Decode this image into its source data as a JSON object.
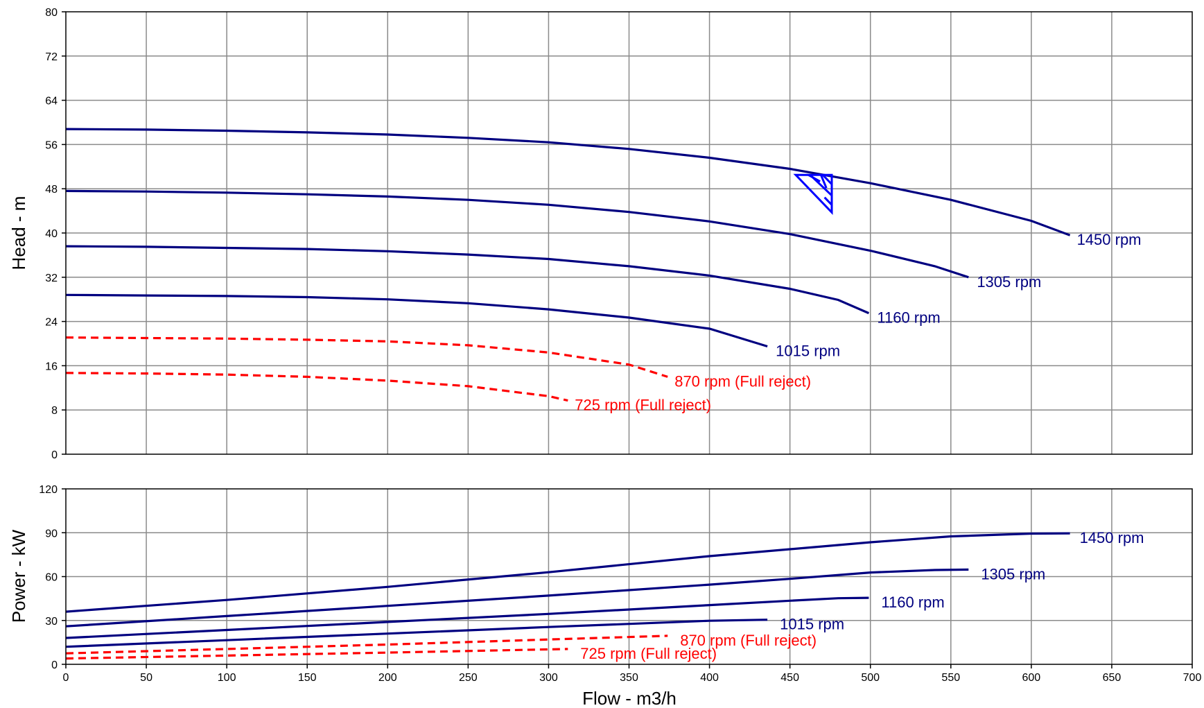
{
  "chart_data": [
    {
      "type": "line",
      "panel": "head",
      "xlabel": "",
      "ylabel": "Head - m",
      "xlim": [
        0,
        700
      ],
      "ylim": [
        0,
        80
      ],
      "x_ticks": [
        "0",
        "50",
        "100",
        "150",
        "200",
        "250",
        "300",
        "350",
        "400",
        "450",
        "500",
        "550",
        "600",
        "650",
        "700"
      ],
      "y_ticks": [
        "0",
        "8",
        "16",
        "24",
        "32",
        "40",
        "48",
        "56",
        "64",
        "72",
        "80"
      ],
      "grid": true,
      "colors": {
        "solid": "#000080",
        "dashed": "#ff0000",
        "marker": "#0000ff"
      },
      "series": [
        {
          "label": "1450 rpm",
          "style": "solid",
          "points": [
            [
              0,
              58.8
            ],
            [
              50,
              58.7
            ],
            [
              100,
              58.5
            ],
            [
              150,
              58.2
            ],
            [
              200,
              57.8
            ],
            [
              250,
              57.2
            ],
            [
              300,
              56.4
            ],
            [
              350,
              55.2
            ],
            [
              400,
              53.6
            ],
            [
              450,
              51.6
            ],
            [
              500,
              49.0
            ],
            [
              550,
              46.0
            ],
            [
              600,
              42.2
            ],
            [
              624,
              39.6
            ]
          ]
        },
        {
          "label": "1305 rpm",
          "style": "solid",
          "points": [
            [
              0,
              47.6
            ],
            [
              50,
              47.5
            ],
            [
              100,
              47.3
            ],
            [
              150,
              47.0
            ],
            [
              200,
              46.6
            ],
            [
              250,
              46.0
            ],
            [
              300,
              45.1
            ],
            [
              350,
              43.8
            ],
            [
              400,
              42.1
            ],
            [
              450,
              39.8
            ],
            [
              500,
              36.8
            ],
            [
              540,
              34.0
            ],
            [
              561,
              32.0
            ]
          ]
        },
        {
          "label": "1160 rpm",
          "style": "solid",
          "points": [
            [
              0,
              37.6
            ],
            [
              50,
              37.5
            ],
            [
              100,
              37.3
            ],
            [
              150,
              37.1
            ],
            [
              200,
              36.7
            ],
            [
              250,
              36.1
            ],
            [
              300,
              35.3
            ],
            [
              350,
              34.0
            ],
            [
              400,
              32.3
            ],
            [
              450,
              29.9
            ],
            [
              480,
              27.9
            ],
            [
              499,
              25.5
            ]
          ]
        },
        {
          "label": "1015 rpm",
          "style": "solid",
          "points": [
            [
              0,
              28.8
            ],
            [
              50,
              28.7
            ],
            [
              100,
              28.6
            ],
            [
              150,
              28.4
            ],
            [
              200,
              28.0
            ],
            [
              250,
              27.3
            ],
            [
              300,
              26.2
            ],
            [
              350,
              24.7
            ],
            [
              400,
              22.7
            ],
            [
              436,
              19.5
            ]
          ]
        },
        {
          "label": "870 rpm (Full reject)",
          "style": "dashed",
          "points": [
            [
              0,
              21.1
            ],
            [
              50,
              21.0
            ],
            [
              100,
              20.9
            ],
            [
              150,
              20.7
            ],
            [
              200,
              20.4
            ],
            [
              250,
              19.7
            ],
            [
              300,
              18.4
            ],
            [
              350,
              16.2
            ],
            [
              374,
              14.0
            ]
          ]
        },
        {
          "label": "725 rpm (Full reject)",
          "style": "dashed",
          "points": [
            [
              0,
              14.7
            ],
            [
              50,
              14.6
            ],
            [
              100,
              14.4
            ],
            [
              150,
              14.0
            ],
            [
              200,
              13.3
            ],
            [
              250,
              12.3
            ],
            [
              300,
              10.5
            ],
            [
              312,
              9.7
            ]
          ]
        }
      ],
      "duty_point": {
        "x": 476,
        "y": 50.5
      }
    },
    {
      "type": "line",
      "panel": "power",
      "xlabel": "Flow - m3/h",
      "ylabel": "Power - kW",
      "xlim": [
        0,
        700
      ],
      "ylim": [
        0,
        120
      ],
      "x_ticks": [
        "0",
        "50",
        "100",
        "150",
        "200",
        "250",
        "300",
        "350",
        "400",
        "450",
        "500",
        "550",
        "600",
        "650",
        "700"
      ],
      "y_ticks": [
        "0",
        "30",
        "60",
        "90",
        "120"
      ],
      "grid": true,
      "series": [
        {
          "label": "1450 rpm",
          "style": "solid",
          "points": [
            [
              0,
              36
            ],
            [
              100,
              44
            ],
            [
              200,
              53
            ],
            [
              300,
              63
            ],
            [
              400,
              74
            ],
            [
              500,
              83.5
            ],
            [
              550,
              87.5
            ],
            [
              600,
              89.4
            ],
            [
              624,
              89.6
            ]
          ]
        },
        {
          "label": "1305 rpm",
          "style": "solid",
          "points": [
            [
              0,
              26
            ],
            [
              100,
              33
            ],
            [
              200,
              40
            ],
            [
              300,
              47
            ],
            [
              400,
              54.5
            ],
            [
              450,
              58.5
            ],
            [
              500,
              62.8
            ],
            [
              540,
              64.5
            ],
            [
              561,
              64.8
            ]
          ]
        },
        {
          "label": "1160 rpm",
          "style": "solid",
          "points": [
            [
              0,
              18
            ],
            [
              100,
              23.5
            ],
            [
              200,
              29
            ],
            [
              300,
              34.5
            ],
            [
              400,
              40.5
            ],
            [
              450,
              43.5
            ],
            [
              480,
              45.2
            ],
            [
              499,
              45.5
            ]
          ]
        },
        {
          "label": "1015 rpm",
          "style": "solid",
          "points": [
            [
              0,
              12
            ],
            [
              100,
              16.5
            ],
            [
              200,
              21
            ],
            [
              300,
              25.5
            ],
            [
              400,
              29.8
            ],
            [
              436,
              30.5
            ]
          ]
        },
        {
          "label": "870 rpm (Full reject)",
          "style": "dashed",
          "points": [
            [
              0,
              7.5
            ],
            [
              100,
              10.5
            ],
            [
              200,
              13.5
            ],
            [
              300,
              17
            ],
            [
              374,
              19.5
            ]
          ]
        },
        {
          "label": "725 rpm (Full reject)",
          "style": "dashed",
          "points": [
            [
              0,
              4
            ],
            [
              100,
              6
            ],
            [
              200,
              8
            ],
            [
              312,
              10.5
            ]
          ]
        }
      ]
    }
  ]
}
